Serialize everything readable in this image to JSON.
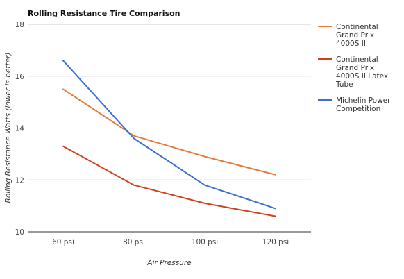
{
  "chart_data": {
    "type": "line",
    "title": "Rolling Resistance Tire Comparison",
    "xlabel": "Air Pressure",
    "ylabel": "Rolling Resistance Watts (lower is better)",
    "categories": [
      "60 psi",
      "80 psi",
      "100 psi",
      "120 psi"
    ],
    "ylim": [
      10,
      18
    ],
    "yticks": [
      10,
      12,
      14,
      16,
      18
    ],
    "grid": true,
    "legend_position": "right",
    "series": [
      {
        "name": "Continental Grand Prix 4000S II",
        "legend_lines": [
          "Continental",
          "Grand Prix",
          "4000S II"
        ],
        "color": "#e8793a",
        "values": [
          15.5,
          13.7,
          12.9,
          12.2
        ]
      },
      {
        "name": "Continental Grand Prix 4000S II Latex Tube",
        "legend_lines": [
          "Continental",
          "Grand Prix",
          "4000S II Latex",
          "Tube"
        ],
        "color": "#d23f1f",
        "values": [
          13.3,
          11.8,
          11.1,
          10.6
        ]
      },
      {
        "name": "Michelin Power Competition",
        "legend_lines": [
          "Michelin Power",
          "Competition"
        ],
        "color": "#3a6fcf",
        "values": [
          16.6,
          13.6,
          11.8,
          10.9
        ]
      }
    ]
  }
}
